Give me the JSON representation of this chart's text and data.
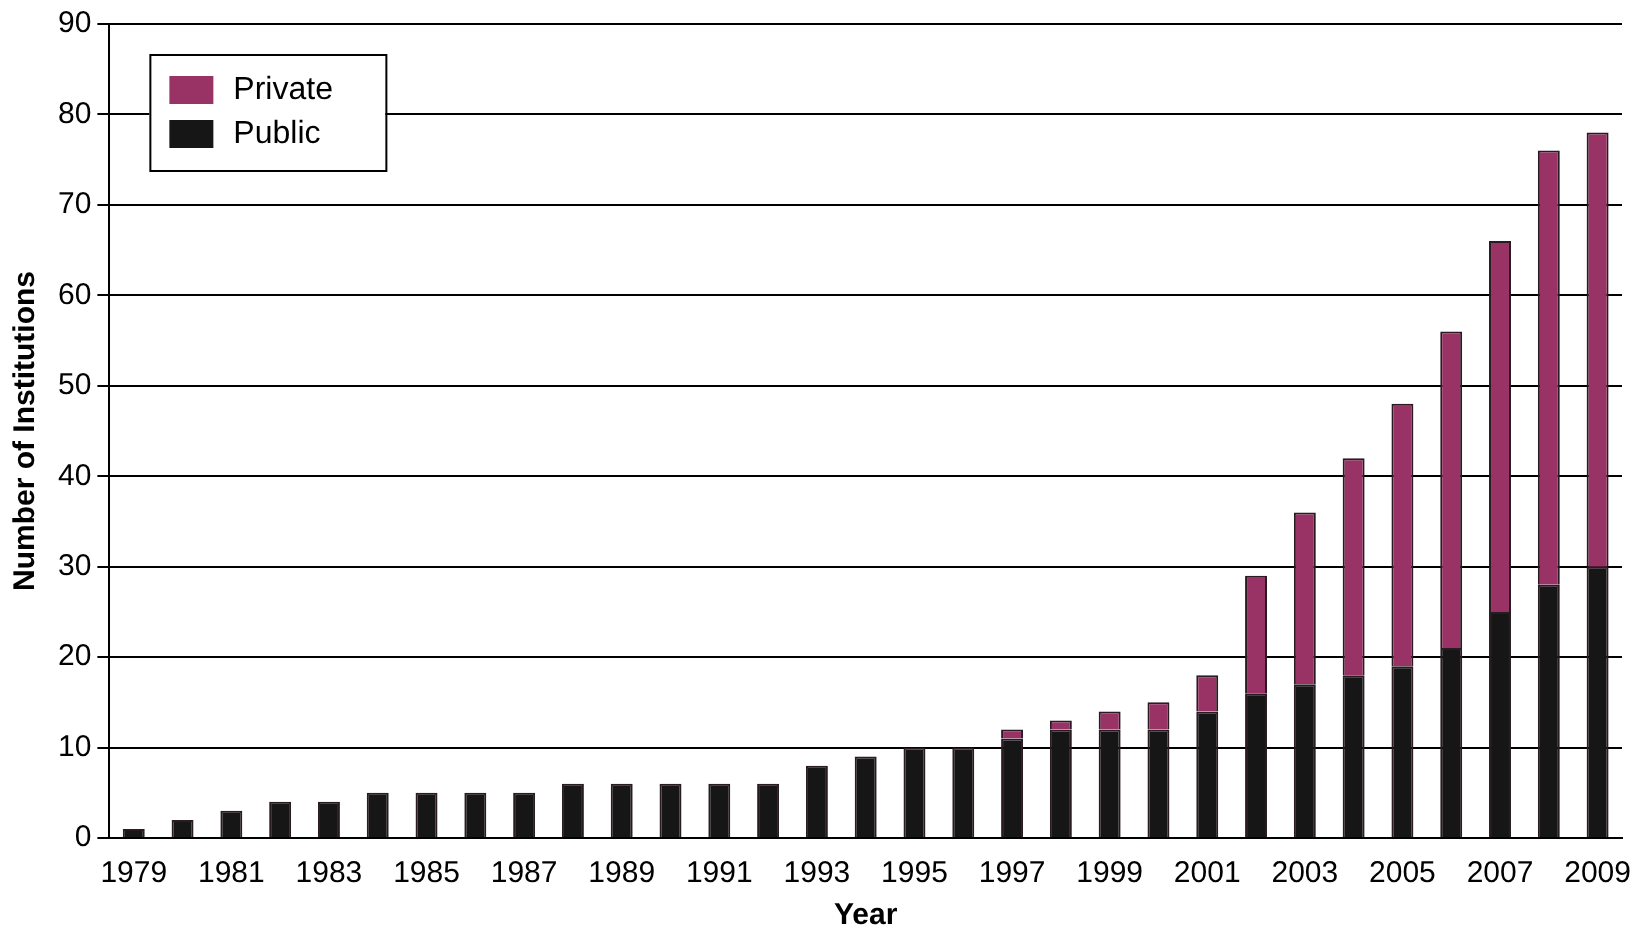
{
  "chart_data": {
    "type": "bar",
    "stacked": true,
    "xlabel": "Year",
    "ylabel": "Number of Institutions",
    "categories": [
      "1979",
      null,
      "1981",
      null,
      "1983",
      null,
      "1985",
      null,
      "1987",
      null,
      "1989",
      null,
      "1991",
      null,
      "1993",
      null,
      "1995",
      null,
      "1997",
      null,
      "1999",
      null,
      "2001",
      null,
      "2003",
      null,
      "2005",
      null,
      "2007",
      null,
      "2009"
    ],
    "series": [
      {
        "name": "Public",
        "color": "#161616",
        "values": [
          1,
          2,
          3,
          4,
          4,
          5,
          5,
          5,
          5,
          6,
          6,
          6,
          6,
          6,
          8,
          9,
          10,
          10,
          11,
          12,
          12,
          12,
          14,
          16,
          17,
          18,
          19,
          21,
          25,
          28,
          30
        ]
      },
      {
        "name": "Private",
        "color": "#993366",
        "values": [
          0,
          0,
          0,
          0,
          0,
          0,
          0,
          0,
          0,
          0,
          0,
          0,
          0,
          0,
          0,
          0,
          0,
          0,
          1,
          1,
          2,
          3,
          4,
          13,
          19,
          24,
          29,
          35,
          41,
          48,
          48
        ]
      }
    ],
    "ylim": [
      0,
      90
    ],
    "yticks": [
      0,
      10,
      20,
      30,
      40,
      50,
      60,
      70,
      80,
      90
    ],
    "grid": "y",
    "legend": "top left"
  }
}
